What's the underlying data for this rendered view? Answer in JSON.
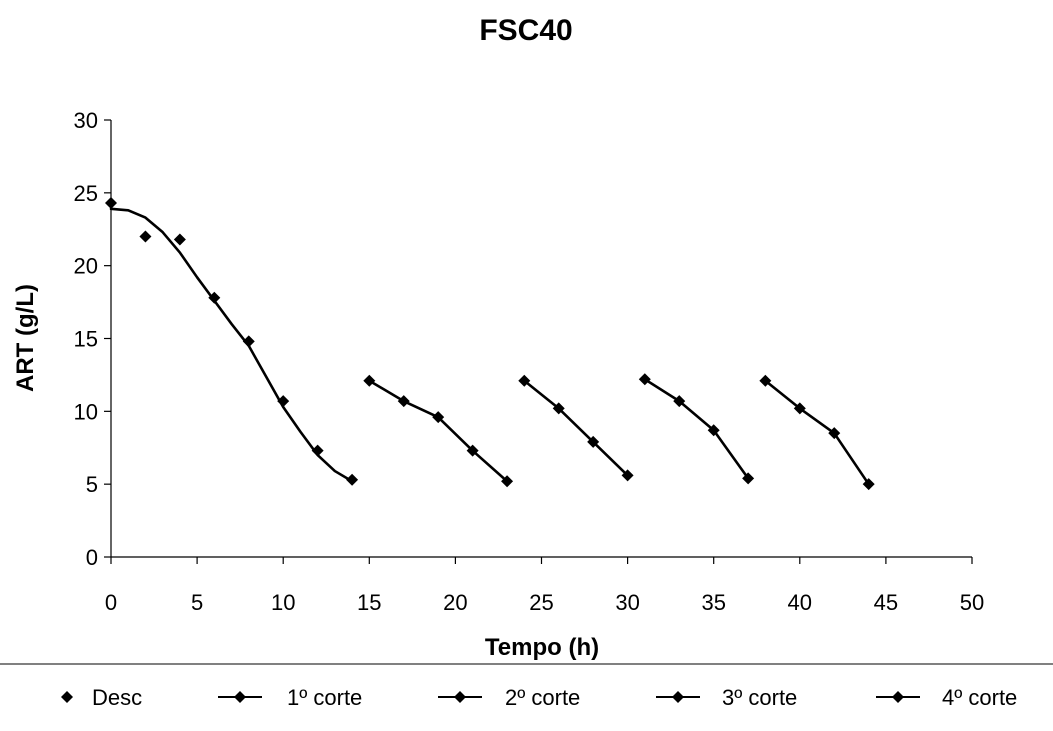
{
  "chart_data": {
    "type": "scatter",
    "title": "FSC40",
    "xlabel": "Tempo (h)",
    "ylabel": "ART (g/L)",
    "xlim": [
      0,
      50
    ],
    "ylim": [
      0,
      30
    ],
    "xticks": [
      0,
      5,
      10,
      15,
      20,
      25,
      30,
      35,
      40,
      45,
      50
    ],
    "yticks": [
      0,
      5,
      10,
      15,
      20,
      25,
      30
    ],
    "grid": false,
    "legend_position": "bottom",
    "series": [
      {
        "name": "Desc",
        "style": "markers",
        "x": [
          0,
          2,
          4,
          6,
          8,
          10,
          12,
          14
        ],
        "y": [
          24.3,
          22.0,
          21.8,
          17.8,
          14.8,
          10.7,
          7.3,
          5.3
        ],
        "curve_x": [
          0,
          1,
          2,
          3,
          4,
          5,
          6,
          7,
          8,
          9,
          10,
          11,
          12,
          13,
          14
        ],
        "curve_y": [
          23.9,
          23.8,
          23.3,
          22.3,
          20.9,
          19.2,
          17.6,
          16.0,
          14.5,
          12.4,
          10.3,
          8.6,
          7.0,
          5.9,
          5.2
        ]
      },
      {
        "name": "1º corte",
        "style": "line-markers",
        "x": [
          15,
          17,
          19,
          21,
          23
        ],
        "y": [
          12.1,
          10.7,
          9.6,
          7.3,
          5.2
        ]
      },
      {
        "name": "2º corte",
        "style": "line-markers",
        "x": [
          24,
          26,
          28,
          30
        ],
        "y": [
          12.1,
          10.2,
          7.9,
          5.6
        ]
      },
      {
        "name": "3º corte",
        "style": "line-markers",
        "x": [
          31,
          33,
          35,
          37
        ],
        "y": [
          12.2,
          10.7,
          8.7,
          5.4
        ]
      },
      {
        "name": "4º corte",
        "style": "line-markers",
        "x": [
          38,
          40,
          42,
          44
        ],
        "y": [
          12.1,
          10.2,
          8.5,
          5.0
        ]
      }
    ]
  }
}
